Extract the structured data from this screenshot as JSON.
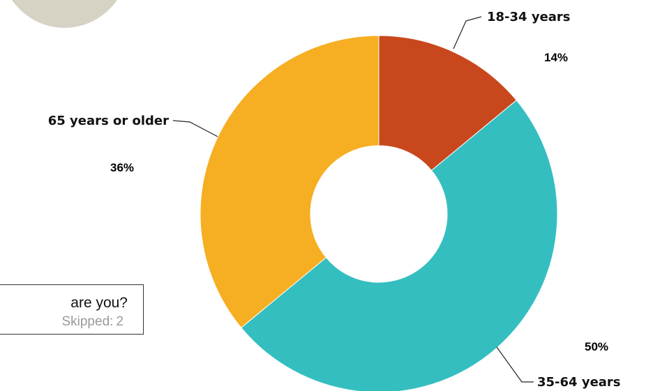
{
  "question": {
    "text": "are you?",
    "skipped_label": "Skipped:",
    "skipped_value": "2"
  },
  "chart_data": {
    "type": "pie",
    "donut": true,
    "categories": [
      "18-34 years",
      "35-64 years",
      "65 years or older"
    ],
    "values": [
      14,
      50,
      36
    ],
    "value_labels": [
      "14%",
      "50%",
      "36%"
    ],
    "colors": [
      "#c9471c",
      "#35bec0",
      "#f6ae22"
    ],
    "legend": "none"
  }
}
